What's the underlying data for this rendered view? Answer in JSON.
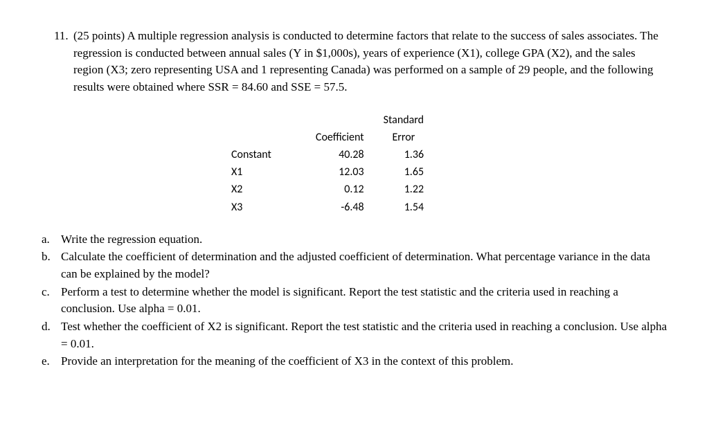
{
  "question": {
    "number": "11.",
    "intro": "(25 points) A multiple regression analysis is conducted to determine factors that relate to the success of sales associates. The regression is conducted between annual sales (Y in $1,000s), years of experience (X1), college GPA (X2), and the sales region (X3; zero representing USA and 1 representing Canada) was performed on a sample of 29 people, and the following results were obtained where SSR = 84.60 and SSE = 57.5."
  },
  "table": {
    "headers": {
      "blank": "",
      "coef": "Coefficient",
      "stderr_top": "Standard",
      "stderr_bottom": "Error"
    },
    "rows": [
      {
        "label": "Constant",
        "coef": "40.28",
        "stderr": "1.36"
      },
      {
        "label": "X1",
        "coef": "12.03",
        "stderr": "1.65"
      },
      {
        "label": "X2",
        "coef": "0.12",
        "stderr": "1.22"
      },
      {
        "label": "X3",
        "coef": "-6.48",
        "stderr": "1.54"
      }
    ]
  },
  "parts": [
    {
      "label": "a.",
      "text": "Write the regression equation."
    },
    {
      "label": "b.",
      "text": "Calculate the coefficient of determination and the adjusted coefficient of determination. What percentage variance in the data can be explained by the model?"
    },
    {
      "label": "c.",
      "text": "Perform a test to determine whether the model is significant. Report the test statistic and the criteria used in reaching a conclusion. Use alpha = 0.01."
    },
    {
      "label": "d.",
      "text": "Test whether the coefficient of X2 is significant. Report the test statistic and the criteria used in reaching a conclusion. Use alpha = 0.01."
    },
    {
      "label": "e.",
      "text": "Provide an interpretation for the meaning of the coefficient of X3 in the context of this problem."
    }
  ]
}
